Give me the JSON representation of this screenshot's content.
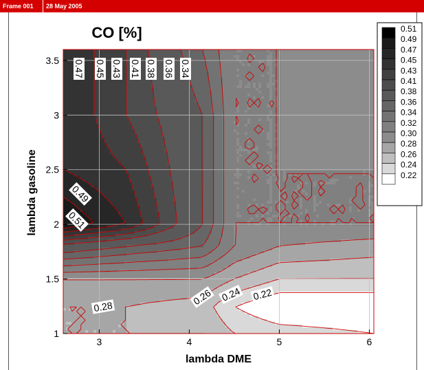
{
  "frame": {
    "label": "Frame 001",
    "date": "28 May 2005"
  },
  "chart_data": {
    "type": "contour",
    "title": "CO  [%]",
    "xlabel": "lambda DME",
    "ylabel": "lambda gasoline",
    "xlim": [
      2.6,
      6.05
    ],
    "ylim": [
      1.0,
      3.6
    ],
    "xticks": [
      "3",
      "4",
      "5",
      "6"
    ],
    "yticks": [
      "1",
      "1.5",
      "2",
      "2.5",
      "3",
      "3.5"
    ],
    "grid": true,
    "line_color": "#cc0000",
    "legend_position": "right",
    "levels": [
      0.51,
      0.49,
      0.47,
      0.45,
      0.43,
      0.41,
      0.38,
      0.36,
      0.34,
      0.32,
      0.3,
      0.28,
      0.26,
      0.24,
      0.22
    ],
    "legend_labels": [
      "0.51",
      "0.49",
      "0.47",
      "0.45",
      "0.43",
      "0.41",
      "0.38",
      "0.36",
      "0.34",
      "0.32",
      "0.30",
      "0.28",
      "0.26",
      "0.24",
      "0.22"
    ],
    "legend_colors": [
      "#000000",
      "#1a1a1a",
      "#262626",
      "#333333",
      "#404040",
      "#4d4d4d",
      "#595959",
      "#666666",
      "#737373",
      "#808080",
      "#8c8c8c",
      "#a6a6a6",
      "#bfbfbf",
      "#d9d9d9",
      "#ffffff"
    ],
    "contour_labels": [
      "0.47",
      "0.45",
      "0.43",
      "0.41",
      "0.38",
      "0.36",
      "0.34",
      "0.49",
      "0.51",
      "0.28",
      "0.26",
      "0.24",
      "0.22"
    ],
    "x": [
      2.6,
      3.3,
      4.15,
      4.5,
      5.0,
      6.05
    ],
    "y": [
      1.0,
      1.25,
      1.5,
      1.8,
      2.0,
      2.5,
      3.0,
      3.6
    ],
    "z": [
      [
        0.28,
        0.28,
        0.28,
        0.26,
        0.25,
        0.24
      ],
      [
        0.28,
        0.28,
        0.27,
        0.24,
        0.22,
        0.22
      ],
      [
        0.3,
        0.3,
        0.3,
        0.28,
        0.26,
        0.26
      ],
      [
        0.4,
        0.38,
        0.36,
        0.32,
        0.3,
        0.29
      ],
      [
        0.51,
        0.47,
        0.38,
        0.32,
        0.32,
        0.32
      ],
      [
        0.47,
        0.45,
        0.38,
        0.32,
        0.32,
        0.32
      ],
      [
        0.47,
        0.43,
        0.38,
        0.32,
        0.32,
        0.31
      ],
      [
        0.47,
        0.43,
        0.36,
        0.32,
        0.32,
        0.3
      ]
    ]
  }
}
